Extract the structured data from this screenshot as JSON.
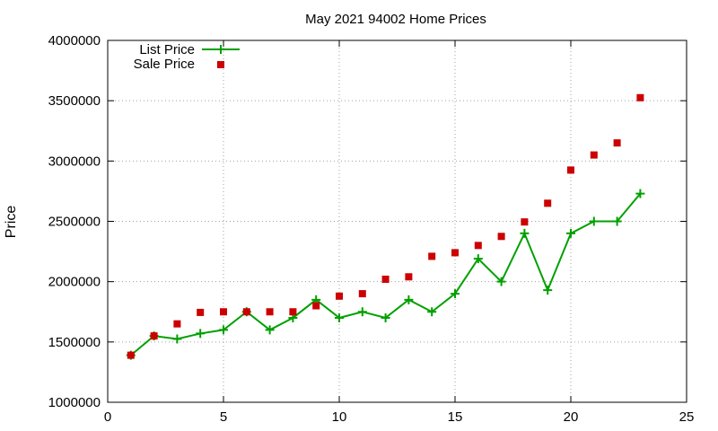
{
  "chart_data": {
    "type": "line",
    "title": "May 2021 94002 Home Prices",
    "xlabel": "",
    "ylabel": "Price",
    "xlim": [
      0,
      25
    ],
    "ylim": [
      1000000,
      4000000
    ],
    "x_ticks": [
      0,
      5,
      10,
      15,
      20,
      25
    ],
    "y_ticks": [
      1000000,
      1500000,
      2000000,
      2500000,
      3000000,
      3500000,
      4000000
    ],
    "grid": true,
    "legend_position": "top-left",
    "series": [
      {
        "name": "List Price",
        "style": "line+plus",
        "color": "#00a000",
        "x": [
          1,
          2,
          3,
          4,
          5,
          6,
          7,
          8,
          9,
          10,
          11,
          12,
          13,
          14,
          15,
          16,
          17,
          18,
          19,
          20,
          21,
          22,
          23
        ],
        "y": [
          1390000,
          1550000,
          1525000,
          1570000,
          1600000,
          1750000,
          1600000,
          1700000,
          1850000,
          1700000,
          1750000,
          1700000,
          1850000,
          1750000,
          1900000,
          2190000,
          2000000,
          2400000,
          1930000,
          2400000,
          2500000,
          2500000,
          2730000
        ]
      },
      {
        "name": "Sale Price",
        "style": "square-markers",
        "color": "#cc0000",
        "x": [
          1,
          2,
          3,
          4,
          5,
          6,
          7,
          8,
          9,
          10,
          11,
          12,
          13,
          14,
          15,
          16,
          17,
          18,
          19,
          20,
          21,
          22,
          23
        ],
        "y": [
          1390000,
          1550000,
          1650000,
          1745000,
          1750000,
          1750000,
          1750000,
          1750000,
          1800000,
          1880000,
          1900000,
          2020000,
          2040000,
          2210000,
          2240000,
          2300000,
          2375000,
          2495000,
          2650000,
          2925000,
          3050000,
          3150000,
          3525000
        ]
      }
    ]
  }
}
